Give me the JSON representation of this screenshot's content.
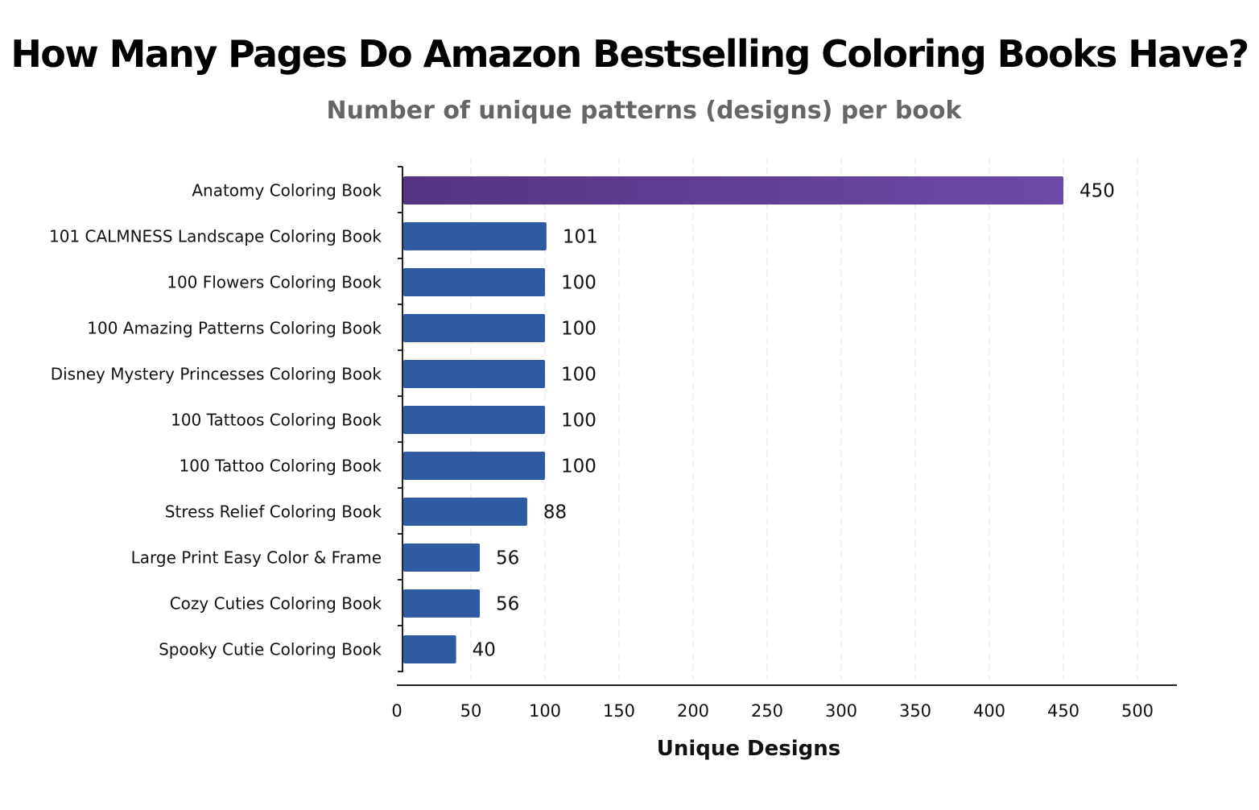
{
  "chart_data": {
    "type": "bar",
    "orientation": "horizontal",
    "title": "How Many Pages Do Amazon Bestselling Coloring Books Have?",
    "subtitle": "Number of unique patterns (designs) per book",
    "xlabel": "Unique Designs",
    "ylabel": "",
    "categories": [
      "Anatomy Coloring Book",
      "101 CALMNESS Landscape Coloring Book",
      "100 Flowers Coloring Book",
      "100 Amazing Patterns Coloring Book",
      "Disney Mystery Princesses Coloring Book",
      "100 Tattoos Coloring Book",
      "100 Tattoo Coloring Book",
      "Stress Relief Coloring Book",
      "Large Print Easy Color & Frame",
      "Cozy Cuties Coloring Book",
      "Spooky Cutie Coloring Book"
    ],
    "values": [
      450,
      101,
      100,
      100,
      100,
      100,
      100,
      88,
      56,
      56,
      40
    ],
    "xlim": [
      0,
      525
    ],
    "xticks": [
      0,
      50,
      100,
      150,
      200,
      250,
      300,
      350,
      400,
      450,
      500
    ],
    "grid": "vertical dashed",
    "colors": {
      "highlight_start": "#553484",
      "highlight_end": "#6c4aa8",
      "bar": "#2f5ba3"
    }
  }
}
